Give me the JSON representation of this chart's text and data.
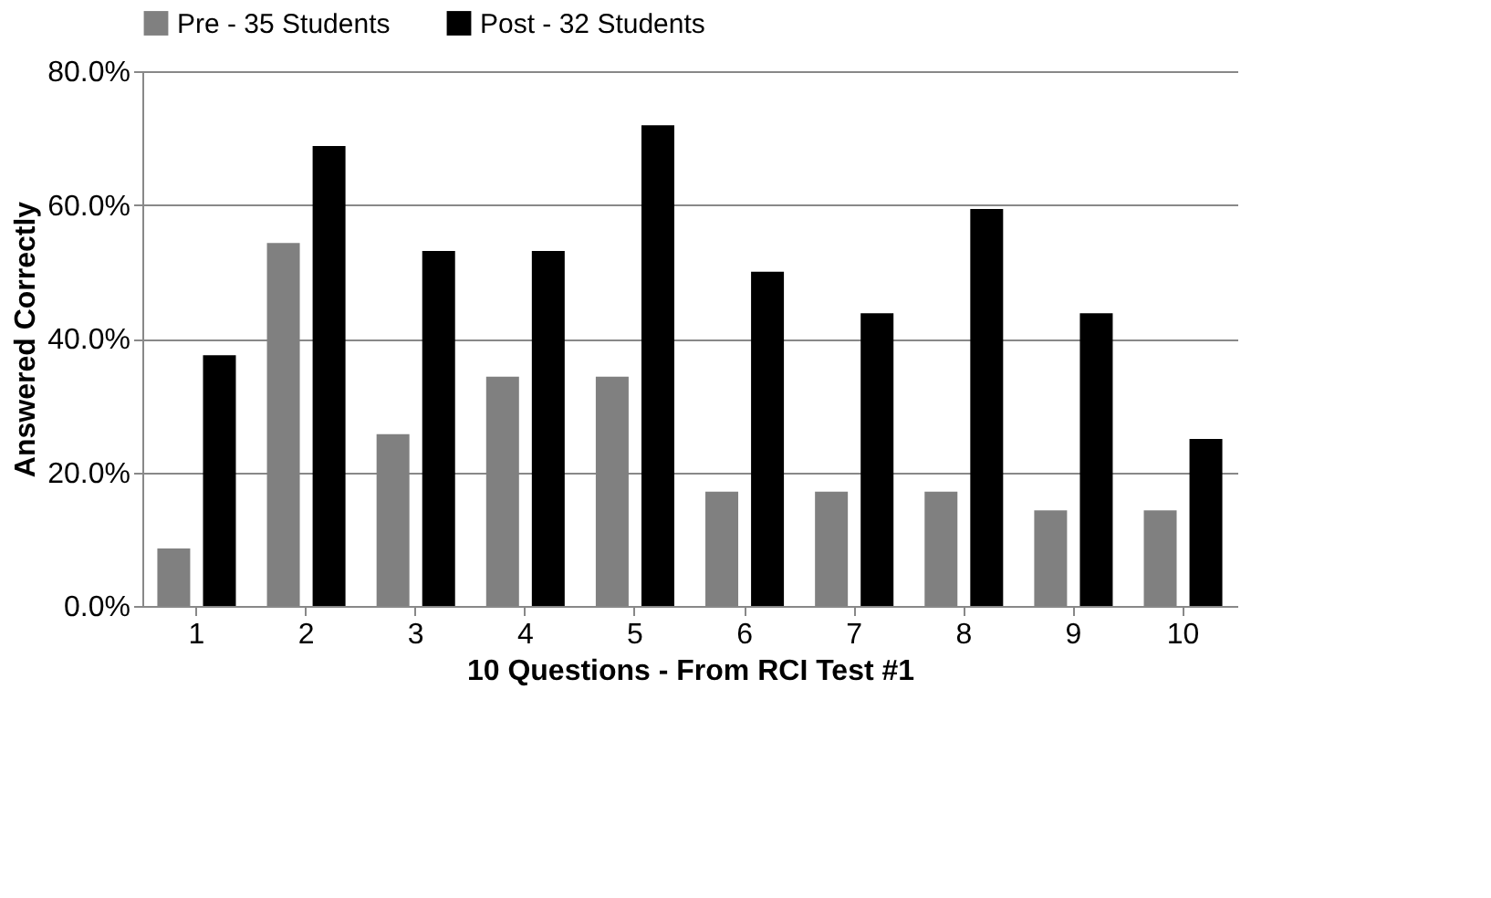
{
  "chart_data": {
    "type": "bar",
    "xlabel": "10 Questions - From RCI Test #1",
    "ylabel": "Answered Correctly",
    "categories": [
      "1",
      "2",
      "3",
      "4",
      "5",
      "6",
      "7",
      "8",
      "9",
      "10"
    ],
    "series": [
      {
        "name": "Pre - 35 Students",
        "color": "#808080",
        "values": [
          8.6,
          54.3,
          25.7,
          34.3,
          34.3,
          17.1,
          17.1,
          17.1,
          14.3,
          14.3
        ]
      },
      {
        "name": "Post - 32 Students",
        "color": "#000000",
        "values": [
          37.5,
          68.8,
          53.1,
          53.1,
          71.9,
          50.0,
          43.8,
          59.4,
          43.8,
          25.0
        ]
      }
    ],
    "ylim": [
      0,
      80
    ],
    "yticks": [
      {
        "value": 0,
        "label": "0.0%"
      },
      {
        "value": 20,
        "label": "20.0%"
      },
      {
        "value": 40,
        "label": "40.0%"
      },
      {
        "value": 60,
        "label": "60.0%"
      },
      {
        "value": 80,
        "label": "80.0%"
      }
    ],
    "grid": "y",
    "legend": "top"
  }
}
